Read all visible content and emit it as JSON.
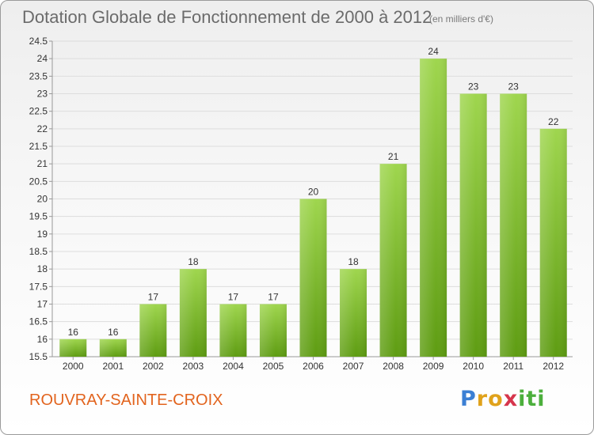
{
  "header": {
    "title": "Dotation Globale de Fonctionnement de 2000 à 2012",
    "unit": "(en milliers d'€)"
  },
  "footer": {
    "place_name": "ROUVRAY-SAINTE-CROIX",
    "logo_letters": [
      "P",
      "r",
      "o",
      "x",
      "i",
      "t",
      "i"
    ],
    "logo_colors": [
      "#3b7fd4",
      "#e0a21b",
      "#e0a21b",
      "#d6354c",
      "#4caf3c",
      "#4caf3c",
      "#4caf3c"
    ]
  },
  "chart_data": {
    "type": "bar",
    "title": "Dotation Globale de Fonctionnement de 2000 à 2012",
    "xlabel": "",
    "ylabel": "",
    "categories": [
      "2000",
      "2001",
      "2002",
      "2003",
      "2004",
      "2005",
      "2006",
      "2007",
      "2008",
      "2009",
      "2010",
      "2011",
      "2012"
    ],
    "values": [
      16,
      16,
      17,
      18,
      17,
      17,
      20,
      18,
      21,
      24,
      23,
      23,
      22
    ],
    "value_labels": [
      "16",
      "16",
      "17",
      "18",
      "17",
      "17",
      "20",
      "18",
      "21",
      "24",
      "23",
      "23",
      "22"
    ],
    "ylim": [
      15.5,
      24.5
    ],
    "yticks": [
      "15.5",
      "16",
      "16.5",
      "17",
      "17.5",
      "18",
      "18.5",
      "19",
      "19.5",
      "20",
      "20.5",
      "21",
      "21.5",
      "22",
      "22.5",
      "23",
      "23.5",
      "24",
      "24.5"
    ],
    "grid": true,
    "legend": "none",
    "bar_color_top": "#9fd64e",
    "bar_color_bottom": "#5e9c12",
    "grid_color": "#dddddd"
  }
}
